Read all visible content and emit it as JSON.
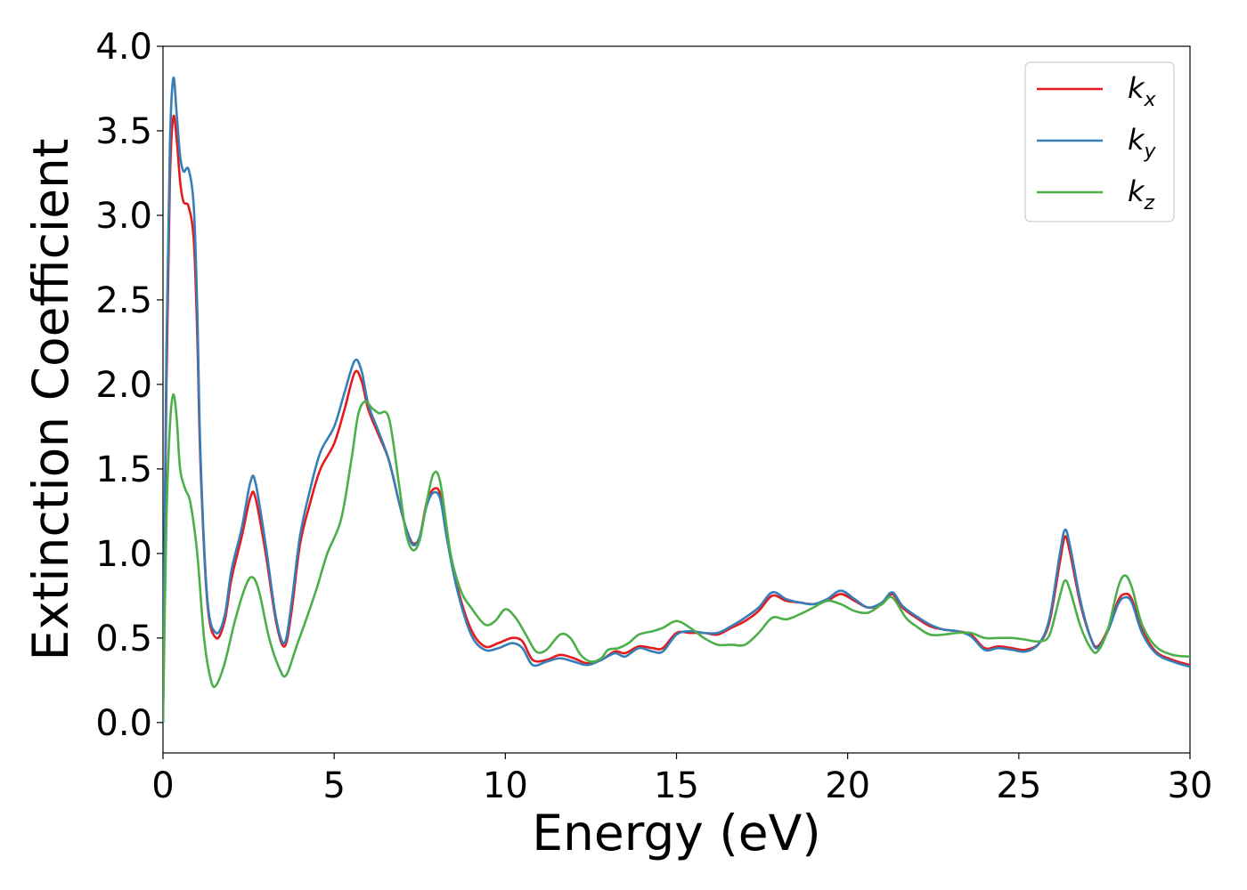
{
  "chart_data": {
    "type": "line",
    "title": "",
    "xlabel": "Energy (eV)",
    "ylabel": "Extinction Coefficient",
    "xlim": [
      0,
      30
    ],
    "ylim": [
      -0.18,
      4.0
    ],
    "xticks": [
      0,
      5,
      10,
      15,
      20,
      25,
      30
    ],
    "yticks": [
      0.0,
      0.5,
      1.0,
      1.5,
      2.0,
      2.5,
      3.0,
      3.5,
      4.0
    ],
    "xtick_labels": [
      "0",
      "5",
      "10",
      "15",
      "20",
      "25",
      "30"
    ],
    "ytick_labels": [
      "0.0",
      "0.5",
      "1.0",
      "1.5",
      "2.0",
      "2.5",
      "3.0",
      "3.5",
      "4.0"
    ],
    "grid": false,
    "legend_position": "top-right",
    "series": [
      {
        "name": "k",
        "subscript": "x",
        "color": "#e41a1c",
        "points": [
          [
            0,
            0.0
          ],
          [
            0.1,
            2.0
          ],
          [
            0.2,
            3.2
          ],
          [
            0.3,
            3.58
          ],
          [
            0.4,
            3.45
          ],
          [
            0.5,
            3.2
          ],
          [
            0.6,
            3.08
          ],
          [
            0.75,
            3.05
          ],
          [
            0.9,
            2.85
          ],
          [
            1.0,
            2.3
          ],
          [
            1.1,
            1.5
          ],
          [
            1.3,
            0.7
          ],
          [
            1.55,
            0.5
          ],
          [
            1.8,
            0.6
          ],
          [
            2.0,
            0.85
          ],
          [
            2.3,
            1.1
          ],
          [
            2.55,
            1.33
          ],
          [
            2.7,
            1.33
          ],
          [
            3.0,
            1.0
          ],
          [
            3.3,
            0.6
          ],
          [
            3.55,
            0.45
          ],
          [
            3.75,
            0.65
          ],
          [
            4.0,
            1.05
          ],
          [
            4.3,
            1.3
          ],
          [
            4.6,
            1.5
          ],
          [
            5.0,
            1.65
          ],
          [
            5.3,
            1.85
          ],
          [
            5.6,
            2.07
          ],
          [
            5.8,
            2.02
          ],
          [
            6.0,
            1.85
          ],
          [
            6.3,
            1.7
          ],
          [
            6.6,
            1.55
          ],
          [
            6.9,
            1.3
          ],
          [
            7.1,
            1.15
          ],
          [
            7.3,
            1.06
          ],
          [
            7.5,
            1.1
          ],
          [
            7.7,
            1.3
          ],
          [
            7.9,
            1.38
          ],
          [
            8.1,
            1.35
          ],
          [
            8.3,
            1.1
          ],
          [
            8.6,
            0.8
          ],
          [
            9.0,
            0.55
          ],
          [
            9.4,
            0.45
          ],
          [
            9.8,
            0.47
          ],
          [
            10.2,
            0.5
          ],
          [
            10.5,
            0.48
          ],
          [
            10.8,
            0.37
          ],
          [
            11.2,
            0.37
          ],
          [
            11.6,
            0.4
          ],
          [
            12.0,
            0.38
          ],
          [
            12.4,
            0.35
          ],
          [
            12.8,
            0.37
          ],
          [
            13.2,
            0.42
          ],
          [
            13.5,
            0.41
          ],
          [
            13.9,
            0.45
          ],
          [
            14.3,
            0.44
          ],
          [
            14.6,
            0.44
          ],
          [
            15.0,
            0.53
          ],
          [
            15.4,
            0.53
          ],
          [
            15.8,
            0.53
          ],
          [
            16.2,
            0.52
          ],
          [
            16.6,
            0.56
          ],
          [
            17.0,
            0.6
          ],
          [
            17.4,
            0.66
          ],
          [
            17.8,
            0.75
          ],
          [
            18.2,
            0.72
          ],
          [
            18.6,
            0.71
          ],
          [
            19.0,
            0.7
          ],
          [
            19.4,
            0.72
          ],
          [
            19.8,
            0.76
          ],
          [
            20.2,
            0.72
          ],
          [
            20.6,
            0.68
          ],
          [
            21.0,
            0.7
          ],
          [
            21.3,
            0.76
          ],
          [
            21.6,
            0.68
          ],
          [
            22.0,
            0.62
          ],
          [
            22.4,
            0.57
          ],
          [
            22.8,
            0.55
          ],
          [
            23.2,
            0.54
          ],
          [
            23.6,
            0.52
          ],
          [
            24.0,
            0.44
          ],
          [
            24.4,
            0.45
          ],
          [
            24.8,
            0.44
          ],
          [
            25.2,
            0.43
          ],
          [
            25.6,
            0.47
          ],
          [
            25.9,
            0.6
          ],
          [
            26.2,
            0.95
          ],
          [
            26.35,
            1.1
          ],
          [
            26.5,
            1.0
          ],
          [
            26.8,
            0.7
          ],
          [
            27.1,
            0.5
          ],
          [
            27.3,
            0.45
          ],
          [
            27.6,
            0.55
          ],
          [
            27.9,
            0.72
          ],
          [
            28.1,
            0.76
          ],
          [
            28.3,
            0.73
          ],
          [
            28.6,
            0.55
          ],
          [
            29.0,
            0.42
          ],
          [
            29.5,
            0.37
          ],
          [
            30.0,
            0.34
          ]
        ]
      },
      {
        "name": "k",
        "subscript": "y",
        "color": "#377eb8",
        "points": [
          [
            0,
            0.0
          ],
          [
            0.1,
            2.2
          ],
          [
            0.2,
            3.4
          ],
          [
            0.3,
            3.81
          ],
          [
            0.4,
            3.6
          ],
          [
            0.5,
            3.35
          ],
          [
            0.6,
            3.26
          ],
          [
            0.75,
            3.27
          ],
          [
            0.9,
            3.05
          ],
          [
            1.0,
            2.45
          ],
          [
            1.1,
            1.55
          ],
          [
            1.3,
            0.72
          ],
          [
            1.55,
            0.53
          ],
          [
            1.8,
            0.63
          ],
          [
            2.0,
            0.9
          ],
          [
            2.3,
            1.15
          ],
          [
            2.55,
            1.42
          ],
          [
            2.7,
            1.42
          ],
          [
            3.0,
            1.05
          ],
          [
            3.3,
            0.62
          ],
          [
            3.55,
            0.47
          ],
          [
            3.75,
            0.7
          ],
          [
            4.0,
            1.1
          ],
          [
            4.3,
            1.38
          ],
          [
            4.6,
            1.6
          ],
          [
            5.0,
            1.75
          ],
          [
            5.3,
            1.95
          ],
          [
            5.6,
            2.14
          ],
          [
            5.8,
            2.08
          ],
          [
            6.0,
            1.88
          ],
          [
            6.3,
            1.72
          ],
          [
            6.6,
            1.55
          ],
          [
            6.9,
            1.3
          ],
          [
            7.1,
            1.15
          ],
          [
            7.3,
            1.05
          ],
          [
            7.5,
            1.1
          ],
          [
            7.7,
            1.28
          ],
          [
            7.9,
            1.36
          ],
          [
            8.1,
            1.32
          ],
          [
            8.3,
            1.08
          ],
          [
            8.6,
            0.78
          ],
          [
            9.0,
            0.52
          ],
          [
            9.4,
            0.43
          ],
          [
            9.8,
            0.44
          ],
          [
            10.2,
            0.47
          ],
          [
            10.5,
            0.44
          ],
          [
            10.8,
            0.34
          ],
          [
            11.2,
            0.36
          ],
          [
            11.6,
            0.38
          ],
          [
            12.0,
            0.36
          ],
          [
            12.4,
            0.34
          ],
          [
            12.8,
            0.37
          ],
          [
            13.2,
            0.41
          ],
          [
            13.5,
            0.39
          ],
          [
            13.9,
            0.44
          ],
          [
            14.3,
            0.42
          ],
          [
            14.6,
            0.42
          ],
          [
            15.0,
            0.52
          ],
          [
            15.4,
            0.54
          ],
          [
            15.8,
            0.53
          ],
          [
            16.2,
            0.53
          ],
          [
            16.6,
            0.57
          ],
          [
            17.0,
            0.62
          ],
          [
            17.4,
            0.68
          ],
          [
            17.8,
            0.77
          ],
          [
            18.2,
            0.73
          ],
          [
            18.6,
            0.71
          ],
          [
            19.0,
            0.7
          ],
          [
            19.4,
            0.73
          ],
          [
            19.8,
            0.78
          ],
          [
            20.2,
            0.73
          ],
          [
            20.6,
            0.68
          ],
          [
            21.0,
            0.71
          ],
          [
            21.3,
            0.77
          ],
          [
            21.6,
            0.69
          ],
          [
            22.0,
            0.63
          ],
          [
            22.4,
            0.58
          ],
          [
            22.8,
            0.55
          ],
          [
            23.2,
            0.54
          ],
          [
            23.6,
            0.51
          ],
          [
            24.0,
            0.43
          ],
          [
            24.4,
            0.44
          ],
          [
            24.8,
            0.43
          ],
          [
            25.2,
            0.42
          ],
          [
            25.6,
            0.47
          ],
          [
            25.9,
            0.62
          ],
          [
            26.2,
            1.0
          ],
          [
            26.35,
            1.14
          ],
          [
            26.5,
            1.04
          ],
          [
            26.8,
            0.72
          ],
          [
            27.1,
            0.5
          ],
          [
            27.3,
            0.44
          ],
          [
            27.6,
            0.54
          ],
          [
            27.9,
            0.7
          ],
          [
            28.1,
            0.74
          ],
          [
            28.3,
            0.71
          ],
          [
            28.6,
            0.53
          ],
          [
            29.0,
            0.41
          ],
          [
            29.5,
            0.36
          ],
          [
            30.0,
            0.33
          ]
        ]
      },
      {
        "name": "k",
        "subscript": "z",
        "color": "#4daf4a",
        "points": [
          [
            0,
            0.0
          ],
          [
            0.1,
            1.2
          ],
          [
            0.2,
            1.75
          ],
          [
            0.3,
            1.94
          ],
          [
            0.4,
            1.8
          ],
          [
            0.5,
            1.5
          ],
          [
            0.65,
            1.38
          ],
          [
            0.8,
            1.3
          ],
          [
            1.0,
            1.0
          ],
          [
            1.2,
            0.5
          ],
          [
            1.4,
            0.25
          ],
          [
            1.55,
            0.22
          ],
          [
            1.8,
            0.35
          ],
          [
            2.1,
            0.6
          ],
          [
            2.4,
            0.8
          ],
          [
            2.6,
            0.86
          ],
          [
            2.8,
            0.78
          ],
          [
            3.1,
            0.5
          ],
          [
            3.4,
            0.32
          ],
          [
            3.6,
            0.28
          ],
          [
            3.9,
            0.45
          ],
          [
            4.2,
            0.62
          ],
          [
            4.5,
            0.8
          ],
          [
            4.8,
            1.0
          ],
          [
            5.2,
            1.2
          ],
          [
            5.5,
            1.55
          ],
          [
            5.7,
            1.82
          ],
          [
            5.9,
            1.9
          ],
          [
            6.1,
            1.86
          ],
          [
            6.3,
            1.83
          ],
          [
            6.6,
            1.8
          ],
          [
            6.9,
            1.4
          ],
          [
            7.1,
            1.12
          ],
          [
            7.3,
            1.02
          ],
          [
            7.5,
            1.08
          ],
          [
            7.7,
            1.3
          ],
          [
            7.9,
            1.47
          ],
          [
            8.1,
            1.42
          ],
          [
            8.4,
            1.0
          ],
          [
            8.7,
            0.78
          ],
          [
            9.0,
            0.68
          ],
          [
            9.4,
            0.58
          ],
          [
            9.7,
            0.6
          ],
          [
            10.0,
            0.67
          ],
          [
            10.3,
            0.62
          ],
          [
            10.6,
            0.52
          ],
          [
            10.9,
            0.42
          ],
          [
            11.2,
            0.43
          ],
          [
            11.6,
            0.52
          ],
          [
            11.9,
            0.5
          ],
          [
            12.2,
            0.4
          ],
          [
            12.5,
            0.36
          ],
          [
            12.8,
            0.38
          ],
          [
            13.0,
            0.43
          ],
          [
            13.3,
            0.44
          ],
          [
            13.6,
            0.47
          ],
          [
            13.9,
            0.52
          ],
          [
            14.3,
            0.54
          ],
          [
            14.6,
            0.56
          ],
          [
            15.0,
            0.6
          ],
          [
            15.4,
            0.56
          ],
          [
            15.8,
            0.5
          ],
          [
            16.2,
            0.46
          ],
          [
            16.6,
            0.46
          ],
          [
            17.0,
            0.46
          ],
          [
            17.4,
            0.53
          ],
          [
            17.8,
            0.62
          ],
          [
            18.2,
            0.61
          ],
          [
            18.6,
            0.64
          ],
          [
            19.0,
            0.68
          ],
          [
            19.4,
            0.72
          ],
          [
            19.8,
            0.7
          ],
          [
            20.2,
            0.66
          ],
          [
            20.6,
            0.65
          ],
          [
            21.0,
            0.7
          ],
          [
            21.3,
            0.74
          ],
          [
            21.7,
            0.62
          ],
          [
            22.0,
            0.57
          ],
          [
            22.4,
            0.52
          ],
          [
            22.8,
            0.52
          ],
          [
            23.2,
            0.53
          ],
          [
            23.6,
            0.53
          ],
          [
            24.0,
            0.5
          ],
          [
            24.4,
            0.5
          ],
          [
            24.8,
            0.5
          ],
          [
            25.2,
            0.49
          ],
          [
            25.6,
            0.48
          ],
          [
            25.9,
            0.52
          ],
          [
            26.2,
            0.75
          ],
          [
            26.35,
            0.84
          ],
          [
            26.5,
            0.78
          ],
          [
            26.8,
            0.57
          ],
          [
            27.1,
            0.44
          ],
          [
            27.3,
            0.42
          ],
          [
            27.6,
            0.55
          ],
          [
            27.9,
            0.8
          ],
          [
            28.1,
            0.87
          ],
          [
            28.3,
            0.8
          ],
          [
            28.6,
            0.58
          ],
          [
            29.0,
            0.45
          ],
          [
            29.5,
            0.4
          ],
          [
            30.0,
            0.39
          ]
        ]
      }
    ]
  }
}
